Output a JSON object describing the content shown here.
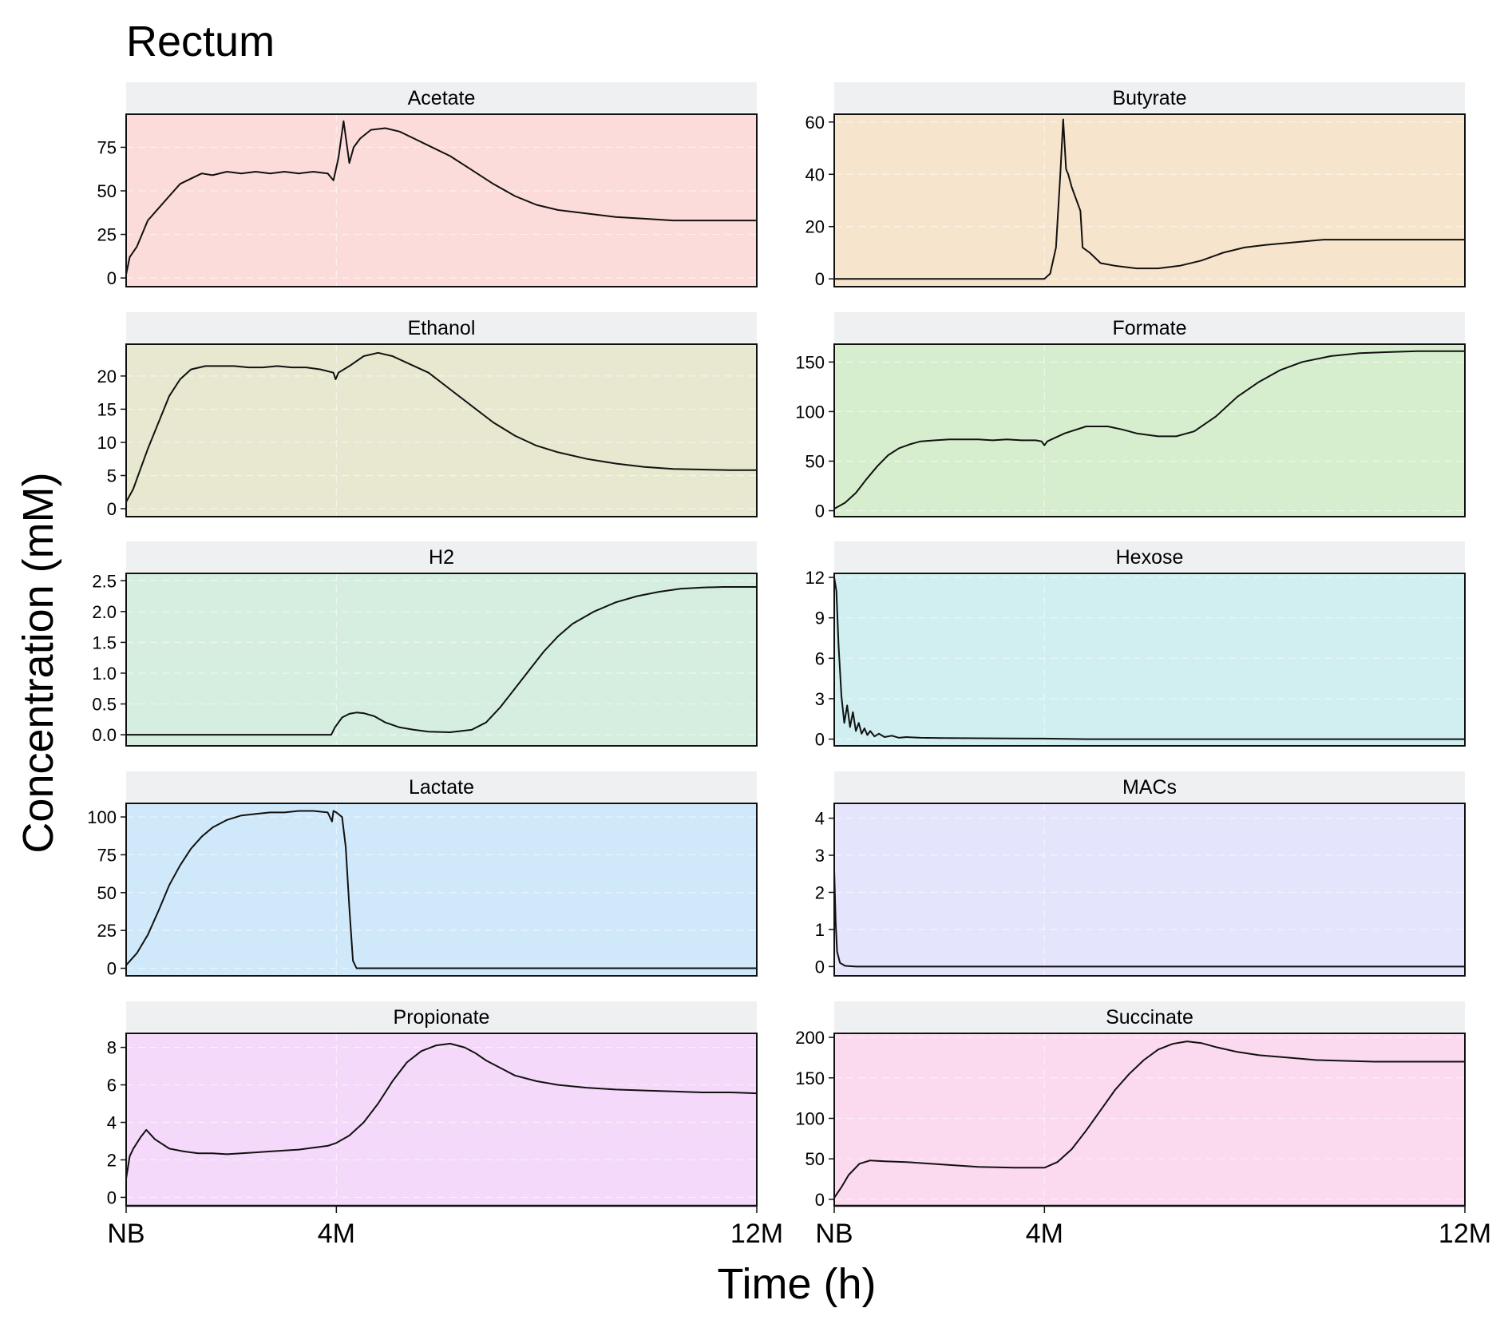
{
  "title": "Rectum",
  "xlabel": "Time (h)",
  "ylabel": "Concentration (mM)",
  "colors": {
    "strip": "#eff0f2",
    "line": "#111111",
    "frame": "#111111",
    "grid": "#ffffff"
  },
  "x_axis": {
    "range": [
      0,
      8760
    ],
    "ticks": [
      {
        "value": 0,
        "label": "NB"
      },
      {
        "value": 2920,
        "label": "4M"
      },
      {
        "value": 8760,
        "label": "12M"
      }
    ]
  },
  "chart_data": [
    {
      "type": "line",
      "name": "Acetate",
      "color": "#fcdcda",
      "ylim": [
        -5,
        94
      ],
      "yticks": [
        0,
        25,
        50,
        75
      ],
      "x": [
        0,
        50,
        150,
        300,
        450,
        600,
        750,
        900,
        1050,
        1200,
        1400,
        1600,
        1800,
        2000,
        2200,
        2400,
        2600,
        2800,
        2880,
        2950,
        3020,
        3100,
        3160,
        3250,
        3400,
        3600,
        3800,
        4000,
        4200,
        4500,
        4800,
        5100,
        5400,
        5700,
        6000,
        6400,
        6800,
        7200,
        7600,
        8000,
        8400,
        8760
      ],
      "y": [
        2,
        12,
        18,
        33,
        40,
        47,
        54,
        57,
        60,
        59,
        61,
        60,
        61,
        60,
        61,
        60,
        61,
        60,
        56,
        69,
        90,
        66,
        75,
        80,
        85,
        86,
        84,
        80,
        76,
        70,
        62,
        54,
        47,
        42,
        39,
        37,
        35,
        34,
        33,
        33,
        33,
        33
      ]
    },
    {
      "type": "line",
      "name": "Butyrate",
      "color": "#f6e5cc",
      "ylim": [
        -3,
        63
      ],
      "yticks": [
        0,
        20,
        40,
        60
      ],
      "x": [
        0,
        2000,
        2920,
        3000,
        3080,
        3140,
        3180,
        3220,
        3250,
        3300,
        3420,
        3450,
        3550,
        3700,
        3900,
        4200,
        4500,
        4800,
        5100,
        5400,
        5700,
        6000,
        6400,
        6800,
        7200,
        7600,
        8000,
        8400,
        8760
      ],
      "y": [
        0,
        0,
        0,
        2,
        12,
        40,
        61,
        42,
        40,
        35,
        26,
        12,
        10,
        6,
        5,
        4,
        4,
        5,
        7,
        10,
        12,
        13,
        14,
        15,
        15,
        15,
        15,
        15,
        15
      ]
    },
    {
      "type": "line",
      "name": "Ethanol",
      "color": "#e7e8cf",
      "ylim": [
        -1.2,
        24.8
      ],
      "yticks": [
        0,
        5,
        10,
        15,
        20
      ],
      "x": [
        0,
        100,
        200,
        300,
        450,
        600,
        750,
        900,
        1100,
        1300,
        1500,
        1700,
        1900,
        2100,
        2300,
        2500,
        2700,
        2880,
        2910,
        2950,
        3100,
        3300,
        3500,
        3700,
        3900,
        4200,
        4500,
        4800,
        5100,
        5400,
        5700,
        6000,
        6400,
        6800,
        7200,
        7600,
        8000,
        8400,
        8760
      ],
      "y": [
        1,
        3,
        6,
        9,
        13,
        17,
        19.5,
        21,
        21.5,
        21.5,
        21.5,
        21.3,
        21.3,
        21.5,
        21.3,
        21.3,
        21,
        20.5,
        19.5,
        20.5,
        21.5,
        23,
        23.5,
        23,
        22,
        20.5,
        18,
        15.5,
        13,
        11,
        9.5,
        8.5,
        7.5,
        6.8,
        6.3,
        6,
        5.9,
        5.8,
        5.8
      ]
    },
    {
      "type": "line",
      "name": "Formate",
      "color": "#d7eece",
      "ylim": [
        -6,
        168
      ],
      "yticks": [
        0,
        50,
        100,
        150
      ],
      "x": [
        0,
        150,
        300,
        450,
        600,
        750,
        900,
        1050,
        1200,
        1400,
        1600,
        1800,
        2000,
        2200,
        2400,
        2600,
        2800,
        2880,
        2920,
        2960,
        3200,
        3500,
        3800,
        4000,
        4200,
        4500,
        4750,
        5000,
        5300,
        5600,
        5900,
        6200,
        6500,
        6900,
        7300,
        7700,
        8100,
        8500,
        8760
      ],
      "y": [
        2,
        8,
        18,
        32,
        45,
        56,
        63,
        67,
        70,
        71,
        72,
        72,
        72,
        71,
        72,
        71,
        71,
        70,
        66,
        70,
        78,
        85,
        85,
        82,
        78,
        75,
        75,
        80,
        95,
        115,
        130,
        142,
        150,
        156,
        159,
        160,
        161,
        161,
        161
      ]
    },
    {
      "type": "line",
      "name": "H2",
      "color": "#d5eee0",
      "ylim": [
        -0.18,
        2.62
      ],
      "yticks": [
        0,
        0.5,
        1,
        1.5,
        2,
        2.5
      ],
      "ytick_labels": [
        "0.0",
        "0.5",
        "1.0",
        "1.5",
        "2.0",
        "2.5"
      ],
      "x": [
        0,
        1000,
        2000,
        2850,
        2900,
        3000,
        3100,
        3200,
        3300,
        3450,
        3600,
        3800,
        4000,
        4200,
        4500,
        4800,
        5000,
        5200,
        5400,
        5600,
        5800,
        6000,
        6200,
        6500,
        6800,
        7100,
        7400,
        7700,
        8000,
        8300,
        8600,
        8760
      ],
      "y": [
        0,
        0,
        0,
        0,
        0.12,
        0.28,
        0.34,
        0.36,
        0.35,
        0.3,
        0.2,
        0.12,
        0.08,
        0.05,
        0.04,
        0.08,
        0.2,
        0.45,
        0.75,
        1.05,
        1.35,
        1.6,
        1.8,
        2.0,
        2.15,
        2.25,
        2.32,
        2.37,
        2.39,
        2.4,
        2.4,
        2.4
      ]
    },
    {
      "type": "line",
      "name": "Hexose",
      "color": "#d1eff0",
      "ylim": [
        -0.5,
        12.3
      ],
      "yticks": [
        0,
        3,
        6,
        9,
        12
      ],
      "x": [
        0,
        30,
        60,
        100,
        140,
        180,
        220,
        260,
        300,
        340,
        380,
        420,
        460,
        500,
        560,
        620,
        700,
        800,
        900,
        1000,
        1200,
        1500,
        2000,
        2500,
        2900,
        3500,
        5000,
        7000,
        8760
      ],
      "y": [
        12,
        11,
        7,
        3.2,
        1.2,
        2.5,
        0.9,
        2.0,
        0.6,
        1.2,
        0.4,
        0.8,
        0.3,
        0.6,
        0.2,
        0.4,
        0.15,
        0.25,
        0.1,
        0.15,
        0.1,
        0.08,
        0.06,
        0.05,
        0.04,
        0,
        0,
        0,
        0
      ]
    },
    {
      "type": "line",
      "name": "Lactate",
      "color": "#d0e9fa",
      "ylim": [
        -5,
        109
      ],
      "yticks": [
        0,
        25,
        50,
        75,
        100
      ],
      "x": [
        0,
        150,
        300,
        450,
        600,
        750,
        900,
        1050,
        1200,
        1400,
        1600,
        1800,
        2000,
        2200,
        2400,
        2600,
        2800,
        2860,
        2880,
        2920,
        3000,
        3050,
        3100,
        3150,
        3200,
        3500,
        5000,
        7000,
        8760
      ],
      "y": [
        2,
        10,
        22,
        38,
        55,
        68,
        79,
        87,
        93,
        98,
        101,
        102,
        103,
        103,
        104,
        104,
        103,
        97,
        104,
        103,
        100,
        80,
        40,
        5,
        0,
        0,
        0,
        0,
        0
      ]
    },
    {
      "type": "line",
      "name": "MACs",
      "color": "#e5e4fd",
      "ylim": [
        -0.25,
        4.4
      ],
      "yticks": [
        0,
        1,
        2,
        3,
        4
      ],
      "x": [
        0,
        20,
        40,
        80,
        150,
        300,
        8760
      ],
      "y": [
        2.6,
        1.2,
        0.4,
        0.1,
        0.02,
        0,
        0
      ]
    },
    {
      "type": "line",
      "name": "Propionate",
      "color": "#f4d9fa",
      "ylim": [
        -0.45,
        8.75
      ],
      "yticks": [
        0,
        2,
        4,
        6,
        8
      ],
      "x": [
        0,
        50,
        100,
        200,
        280,
        400,
        600,
        800,
        1000,
        1200,
        1400,
        1600,
        1800,
        2000,
        2200,
        2400,
        2600,
        2800,
        2920,
        3100,
        3300,
        3500,
        3700,
        3900,
        4100,
        4300,
        4500,
        4700,
        4850,
        5000,
        5200,
        5400,
        5700,
        6000,
        6400,
        6800,
        7200,
        7600,
        8000,
        8400,
        8760
      ],
      "y": [
        1,
        2.2,
        2.6,
        3.2,
        3.6,
        3.1,
        2.6,
        2.45,
        2.35,
        2.35,
        2.3,
        2.35,
        2.4,
        2.45,
        2.5,
        2.55,
        2.65,
        2.75,
        2.9,
        3.3,
        4,
        5,
        6.2,
        7.2,
        7.8,
        8.1,
        8.2,
        8,
        7.7,
        7.3,
        6.9,
        6.5,
        6.2,
        6,
        5.85,
        5.75,
        5.7,
        5.65,
        5.6,
        5.6,
        5.55
      ]
    },
    {
      "type": "line",
      "name": "Succinate",
      "color": "#fbd9ee",
      "ylim": [
        -8,
        205
      ],
      "yticks": [
        0,
        50,
        100,
        150,
        200
      ],
      "x": [
        0,
        100,
        200,
        350,
        500,
        700,
        1000,
        1500,
        2000,
        2500,
        2800,
        2920,
        3100,
        3300,
        3500,
        3700,
        3900,
        4100,
        4300,
        4500,
        4700,
        4900,
        5100,
        5300,
        5600,
        5900,
        6300,
        6700,
        7100,
        7500,
        7900,
        8300,
        8760
      ],
      "y": [
        2,
        15,
        30,
        44,
        48,
        47,
        46,
        43,
        40,
        39,
        39,
        39,
        46,
        62,
        85,
        110,
        135,
        155,
        172,
        185,
        192,
        195,
        193,
        188,
        182,
        178,
        175,
        172,
        171,
        170,
        170,
        170,
        170
      ]
    }
  ]
}
